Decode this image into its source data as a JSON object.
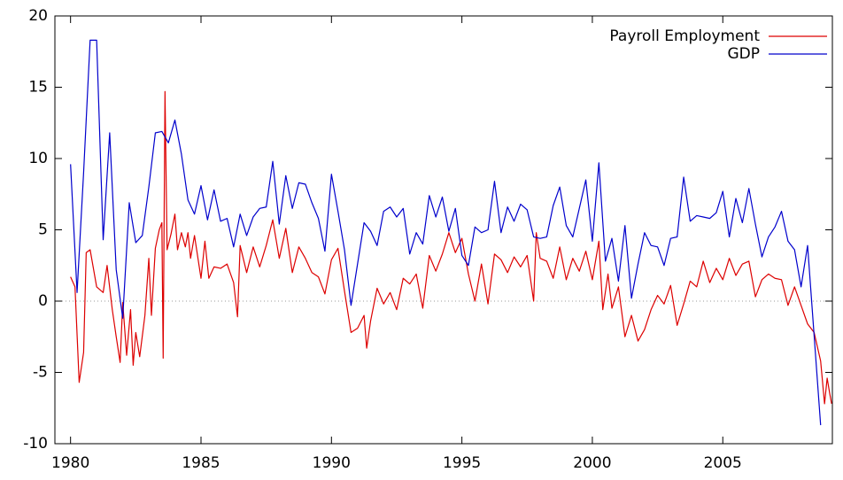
{
  "chart_data": {
    "type": "line",
    "xlim": [
      1979.4,
      2009.2
    ],
    "xticks": [
      1980,
      1985,
      1990,
      1995,
      2000,
      2005
    ],
    "ylim": [
      -10,
      20
    ],
    "yticks": [
      -10,
      -5,
      0,
      5,
      10,
      15,
      20
    ],
    "zero_line": true,
    "legend": "top-right",
    "series": [
      {
        "name": "Payroll Employment",
        "color": "#dd0000",
        "x": [
          1980.0,
          1980.17,
          1980.33,
          1980.5,
          1980.6,
          1980.75,
          1981.0,
          1981.25,
          1981.4,
          1981.6,
          1981.75,
          1981.9,
          1982.0,
          1982.15,
          1982.3,
          1982.4,
          1982.5,
          1982.65,
          1982.85,
          1983.0,
          1983.1,
          1983.25,
          1983.4,
          1983.5,
          1983.55,
          1983.62,
          1983.7,
          1983.85,
          1984.0,
          1984.1,
          1984.25,
          1984.4,
          1984.5,
          1984.6,
          1984.75,
          1985.0,
          1985.15,
          1985.3,
          1985.5,
          1985.75,
          1986.0,
          1986.25,
          1986.4,
          1986.5,
          1986.75,
          1987.0,
          1987.25,
          1987.5,
          1987.75,
          1988.0,
          1988.25,
          1988.5,
          1988.75,
          1989.0,
          1989.25,
          1989.5,
          1989.75,
          1990.0,
          1990.25,
          1990.5,
          1990.75,
          1991.0,
          1991.25,
          1991.35,
          1991.5,
          1991.75,
          1992.0,
          1992.25,
          1992.5,
          1992.75,
          1993.0,
          1993.25,
          1993.5,
          1993.75,
          1994.0,
          1994.25,
          1994.5,
          1994.75,
          1995.0,
          1995.25,
          1995.5,
          1995.75,
          1996.0,
          1996.25,
          1996.5,
          1996.75,
          1997.0,
          1997.25,
          1997.5,
          1997.75,
          1997.85,
          1998.0,
          1998.25,
          1998.5,
          1998.75,
          1999.0,
          1999.25,
          1999.5,
          1999.75,
          2000.0,
          2000.25,
          2000.4,
          2000.6,
          2000.75,
          2001.0,
          2001.25,
          2001.5,
          2001.75,
          2002.0,
          2002.25,
          2002.5,
          2002.75,
          2003.0,
          2003.25,
          2003.5,
          2003.75,
          2004.0,
          2004.25,
          2004.5,
          2004.75,
          2005.0,
          2005.25,
          2005.5,
          2005.75,
          2006.0,
          2006.25,
          2006.5,
          2006.75,
          2007.0,
          2007.25,
          2007.5,
          2007.75,
          2008.0,
          2008.25,
          2008.5,
          2008.75,
          2008.9,
          2009.0,
          2009.1,
          2009.17
        ],
        "values": [
          1.7,
          1.0,
          -5.7,
          -3.6,
          3.4,
          3.6,
          1.0,
          0.6,
          2.5,
          -0.6,
          -2.5,
          -4.3,
          -0.1,
          -3.8,
          -0.6,
          -4.5,
          -2.2,
          -3.9,
          -1.0,
          3.0,
          -1.0,
          3.7,
          5.0,
          5.5,
          -4.0,
          14.7,
          3.6,
          4.7,
          6.1,
          3.6,
          4.8,
          3.8,
          4.8,
          3.0,
          4.6,
          1.6,
          4.2,
          1.6,
          2.4,
          2.3,
          2.6,
          1.3,
          -1.1,
          3.9,
          2.0,
          3.8,
          2.4,
          3.9,
          5.7,
          3.0,
          5.1,
          2.0,
          3.8,
          3.0,
          2.0,
          1.7,
          0.5,
          2.9,
          3.7,
          0.7,
          -2.2,
          -1.9,
          -1.0,
          -3.3,
          -1.4,
          0.9,
          -0.2,
          0.6,
          -0.6,
          1.6,
          1.2,
          1.9,
          -0.5,
          3.2,
          2.1,
          3.3,
          4.8,
          3.4,
          4.4,
          1.9,
          0.0,
          2.6,
          -0.2,
          3.3,
          2.9,
          2.0,
          3.1,
          2.4,
          3.2,
          0.0,
          4.8,
          3.0,
          2.8,
          1.6,
          3.8,
          1.5,
          3.0,
          2.1,
          3.5,
          1.5,
          4.2,
          -0.6,
          1.9,
          -0.5,
          1.0,
          -2.5,
          -1.0,
          -2.8,
          -2.0,
          -0.6,
          0.4,
          -0.2,
          1.1,
          -1.7,
          -0.2,
          1.4,
          1.0,
          2.8,
          1.3,
          2.3,
          1.5,
          3.0,
          1.8,
          2.6,
          2.8,
          0.3,
          1.5,
          1.9,
          1.6,
          1.5,
          -0.3,
          1.0,
          -0.3,
          -1.6,
          -2.2,
          -4.2,
          -7.2,
          -5.4,
          -6.5,
          -7.2
        ]
      },
      {
        "name": "GDP",
        "color": "#0000cc",
        "x": [
          1980.0,
          1980.25,
          1980.5,
          1980.75,
          1981.0,
          1981.25,
          1981.5,
          1981.75,
          1982.0,
          1982.25,
          1982.5,
          1982.75,
          1983.0,
          1983.25,
          1983.5,
          1983.75,
          1984.0,
          1984.25,
          1984.5,
          1984.75,
          1985.0,
          1985.25,
          1985.5,
          1985.75,
          1986.0,
          1986.25,
          1986.5,
          1986.75,
          1987.0,
          1987.25,
          1987.5,
          1987.75,
          1988.0,
          1988.25,
          1988.5,
          1988.75,
          1989.0,
          1989.25,
          1989.5,
          1989.75,
          1990.0,
          1990.25,
          1990.5,
          1990.75,
          1991.0,
          1991.25,
          1991.5,
          1991.75,
          1992.0,
          1992.25,
          1992.5,
          1992.75,
          1993.0,
          1993.25,
          1993.5,
          1993.75,
          1994.0,
          1994.25,
          1994.5,
          1994.75,
          1995.0,
          1995.25,
          1995.5,
          1995.75,
          1996.0,
          1996.25,
          1996.5,
          1996.75,
          1997.0,
          1997.25,
          1997.5,
          1997.75,
          1998.0,
          1998.25,
          1998.5,
          1998.75,
          1999.0,
          1999.25,
          1999.5,
          1999.75,
          2000.0,
          2000.25,
          2000.5,
          2000.75,
          2001.0,
          2001.25,
          2001.5,
          2001.75,
          2002.0,
          2002.25,
          2002.5,
          2002.75,
          2003.0,
          2003.25,
          2003.5,
          2003.75,
          2004.0,
          2004.25,
          2004.5,
          2004.75,
          2005.0,
          2005.25,
          2005.5,
          2005.75,
          2006.0,
          2006.25,
          2006.5,
          2006.75,
          2007.0,
          2007.25,
          2007.5,
          2007.75,
          2008.0,
          2008.25,
          2008.75
        ],
        "values": [
          9.6,
          0.6,
          9.0,
          18.3,
          18.3,
          4.3,
          11.8,
          2.2,
          -1.2,
          6.9,
          4.1,
          4.6,
          8.0,
          11.8,
          11.9,
          11.1,
          12.7,
          10.3,
          7.1,
          6.1,
          8.1,
          5.7,
          7.8,
          5.6,
          5.8,
          3.8,
          6.1,
          4.6,
          5.9,
          6.5,
          6.6,
          9.8,
          5.4,
          8.8,
          6.5,
          8.3,
          8.2,
          6.9,
          5.8,
          3.5,
          8.9,
          6.3,
          3.6,
          -0.3,
          2.6,
          5.5,
          4.9,
          3.9,
          6.3,
          6.6,
          5.9,
          6.5,
          3.3,
          4.8,
          4.0,
          7.4,
          5.9,
          7.3,
          4.9,
          6.5,
          3.2,
          2.5,
          5.2,
          4.8,
          5.0,
          8.4,
          4.8,
          6.6,
          5.6,
          6.8,
          6.4,
          4.5,
          4.4,
          4.5,
          6.7,
          8.0,
          5.3,
          4.5,
          6.5,
          8.5,
          4.2,
          9.7,
          2.8,
          4.4,
          1.4,
          5.3,
          0.2,
          2.6,
          4.8,
          3.9,
          3.8,
          2.5,
          4.4,
          4.5,
          8.7,
          5.6,
          6.0,
          5.9,
          5.8,
          6.2,
          7.7,
          4.5,
          7.2,
          5.5,
          7.9,
          5.4,
          3.1,
          4.5,
          5.2,
          6.3,
          4.2,
          3.6,
          1.0,
          3.9,
          -8.7
        ]
      }
    ]
  }
}
